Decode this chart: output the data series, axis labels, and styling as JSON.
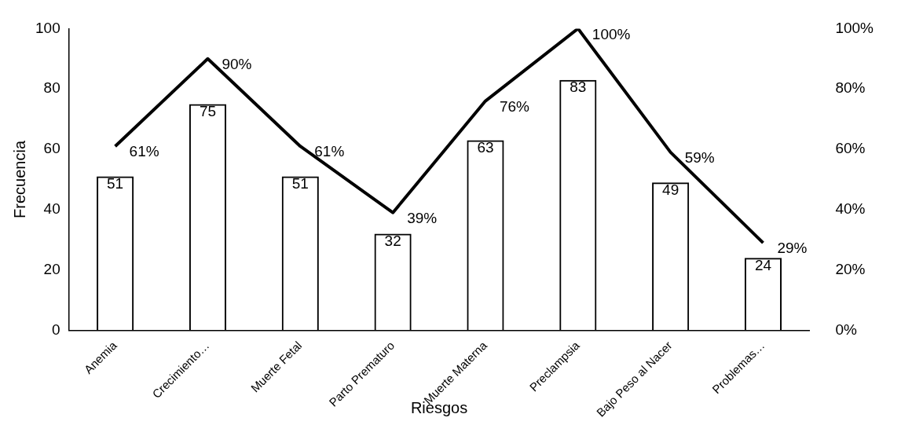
{
  "chart_data": {
    "type": "bar",
    "xlabel": "Riesgos",
    "ylabel": "Frecuencia",
    "categories": [
      "Anemia",
      "Crecimiento…",
      "Muerte Fetal",
      "Parto Prematuro",
      "Muerte Materna",
      "Preclampsia",
      "Bajo Peso al Nacer",
      "Problemas…"
    ],
    "series": [
      {
        "color": "#000000",
        "values": [
          51,
          75,
          51,
          32,
          63,
          83,
          49,
          24
        ],
        "value_labels": [
          "51",
          "75",
          "51",
          "32",
          "63",
          "83",
          "49",
          "24"
        ]
      },
      {
        "type": "line",
        "axis": "y2",
        "color": "#000000",
        "values": [
          61,
          90,
          61,
          39,
          76,
          100,
          59,
          29
        ],
        "value_labels": [
          "61%",
          "90%",
          "61%",
          "39%",
          "76%",
          "100%",
          "59%",
          "29%"
        ]
      }
    ],
    "ylim": [
      0,
      100
    ],
    "yticks": [
      0,
      20,
      40,
      60,
      80,
      100
    ],
    "y2lim": [
      0,
      100
    ],
    "y2ticks": [
      {
        "value": 0,
        "label": "0%"
      },
      {
        "value": 20,
        "label": "20%"
      },
      {
        "value": 40,
        "label": "40%"
      },
      {
        "value": 60,
        "label": "60%"
      },
      {
        "value": 80,
        "label": "80%"
      },
      {
        "value": 100,
        "label": "100%"
      }
    ],
    "grid": false,
    "legend": false,
    "marker": "none"
  }
}
